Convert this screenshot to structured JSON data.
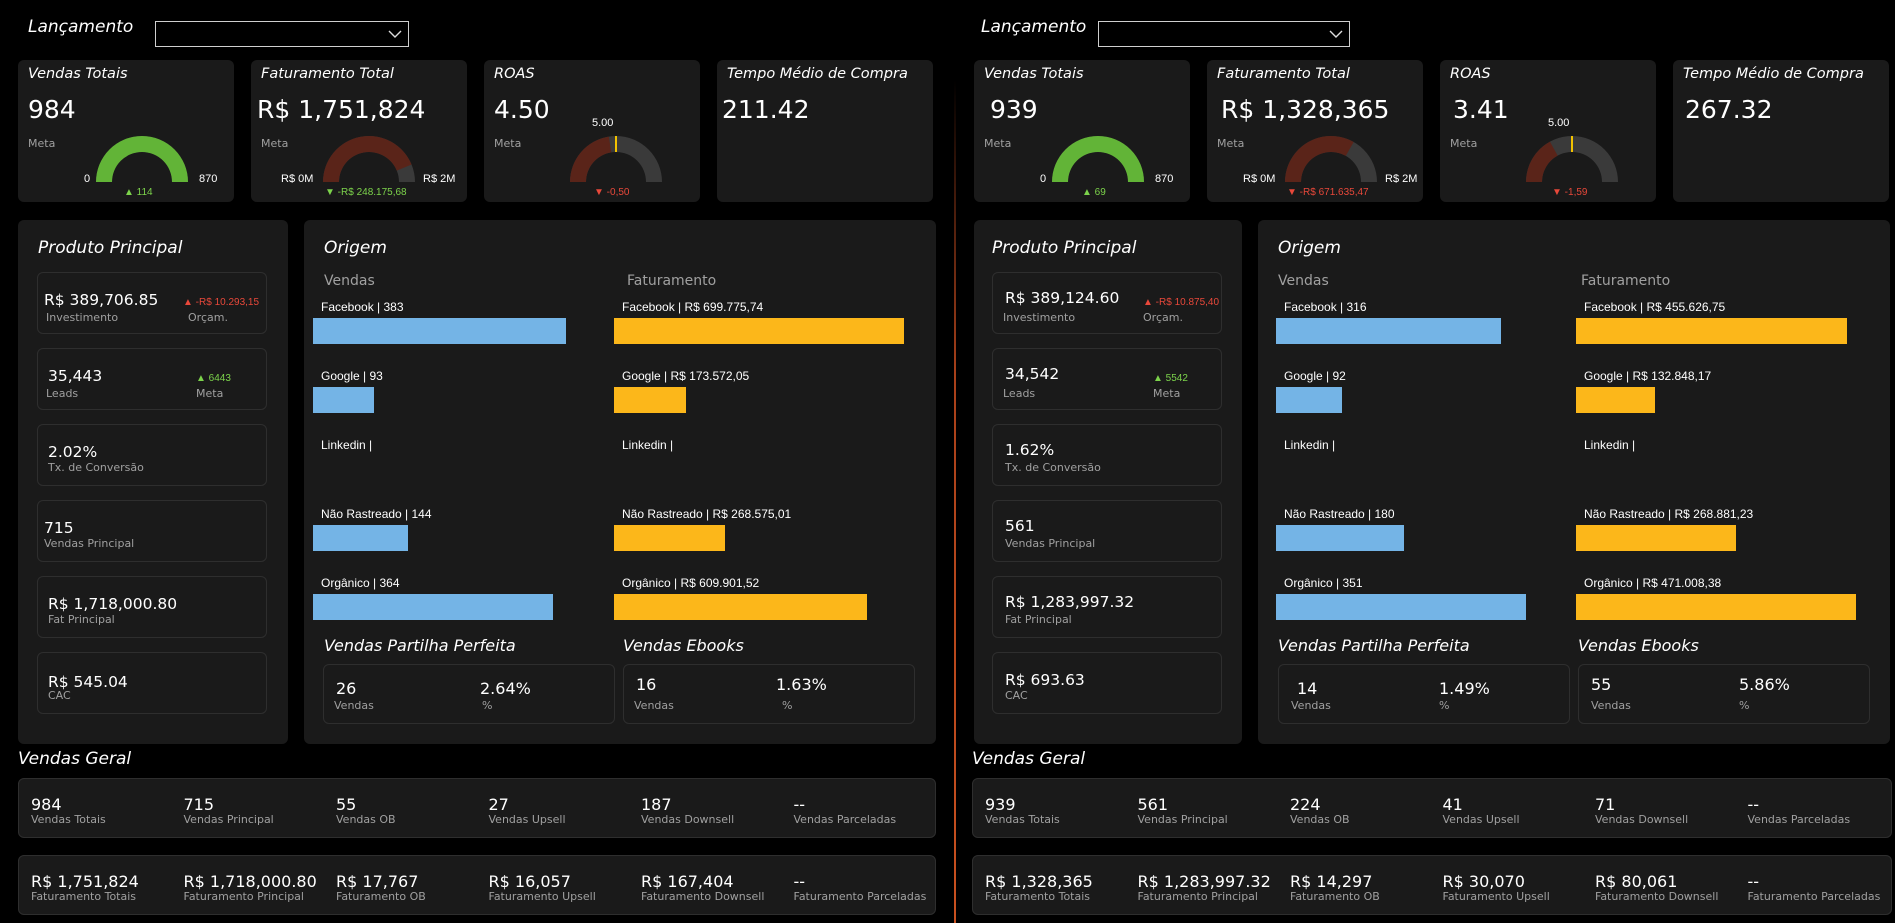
{
  "colors": {
    "green": "#62b437",
    "red": "#e8483a",
    "blue": "#74b4e6",
    "yellow": "#fcb71a",
    "gauge_red": "#5a2419",
    "gauge_grey": "#3a3a3a",
    "needle": "#f2c200"
  },
  "panels": [
    {
      "filter_label": "Lançamento",
      "kpis": {
        "vendas": {
          "title": "Vendas Totais",
          "value": "984",
          "meta_label": "Meta",
          "min": "0",
          "max": "870",
          "delta": "▲ 114",
          "fill": 1.0
        },
        "faturamento": {
          "title": "Faturamento Total",
          "value": "R$ 1,751,824",
          "meta_label": "Meta",
          "min": "R$ 0M",
          "max": "R$ 2M",
          "delta": "▼ -R$ 248.175,68",
          "fill": 0.876
        },
        "roas": {
          "title": "ROAS",
          "value": "4.50",
          "meta_label": "Meta",
          "target": "5.00",
          "delta": "▼ -0,50",
          "fill": 0.45
        },
        "tempo": {
          "title": "Tempo Médio de Compra",
          "value": "211.42"
        }
      },
      "produto": {
        "title": "Produto Principal",
        "investimento": {
          "value": "R$ 389,706.85",
          "label": "Investimento",
          "delta": "▲ -R$ 10.293,15",
          "delta_label": "Orçam."
        },
        "leads": {
          "value": "35,443",
          "label": "Leads",
          "delta": "▲ 6443",
          "delta_label": "Meta"
        },
        "conversao": {
          "value": "2.02%",
          "label": "Tx. de Conversão"
        },
        "vendas_principal": {
          "value": "715",
          "label": "Vendas Principal"
        },
        "fat_principal": {
          "value": "R$ 1,718,000.80",
          "label": "Fat Principal"
        },
        "cac": {
          "value": "R$ 545.04",
          "label": "CAC"
        }
      },
      "origem": {
        "title": "Origem",
        "vendas_header": "Vendas",
        "fat_header": "Faturamento",
        "vendas": [
          {
            "label": "Facebook | 383",
            "value": 383
          },
          {
            "label": "Google | 93",
            "value": 93
          },
          {
            "label": "Linkedin |",
            "value": 0
          },
          {
            "label": "Não Rastreado | 144",
            "value": 144
          },
          {
            "label": "Orgânico | 364",
            "value": 364
          }
        ],
        "faturamento": [
          {
            "label": "Facebook | R$ 699.775,74",
            "value": 699775.74
          },
          {
            "label": "Google | R$ 173.572,05",
            "value": 173572.05
          },
          {
            "label": "Linkedin |",
            "value": 0
          },
          {
            "label": "Não Rastreado | R$ 268.575,01",
            "value": 268575.01
          },
          {
            "label": "Orgânico | R$ 609.901,52",
            "value": 609901.52
          }
        ]
      },
      "partilha": {
        "title": "Vendas Partilha Perfeita",
        "count": "26",
        "count_label": "Vendas",
        "pct": "2.64%",
        "pct_label": "%"
      },
      "ebooks": {
        "title": "Vendas Ebooks",
        "count": "16",
        "count_label": "Vendas",
        "pct": "1.63%",
        "pct_label": "%"
      },
      "geral": {
        "title": "Vendas Geral",
        "vendas": [
          {
            "value": "984",
            "label": "Vendas Totais"
          },
          {
            "value": "715",
            "label": "Vendas Principal"
          },
          {
            "value": "55",
            "label": "Vendas OB"
          },
          {
            "value": "27",
            "label": "Vendas Upsell"
          },
          {
            "value": "187",
            "label": "Vendas Downsell"
          },
          {
            "value": "--",
            "label": "Vendas Parceladas"
          }
        ],
        "faturamento": [
          {
            "value": "R$ 1,751,824",
            "label": "Faturamento Totais"
          },
          {
            "value": "R$ 1,718,000.80",
            "label": "Faturamento Principal"
          },
          {
            "value": "R$ 17,767",
            "label": "Faturamento OB"
          },
          {
            "value": "R$ 16,057",
            "label": "Faturamento Upsell"
          },
          {
            "value": "R$ 167,404",
            "label": "Faturamento Downsell"
          },
          {
            "value": "--",
            "label": "Faturamento Parceladas"
          }
        ]
      }
    },
    {
      "filter_label": "Lançamento",
      "kpis": {
        "vendas": {
          "title": "Vendas Totais",
          "value": "939",
          "meta_label": "Meta",
          "min": "0",
          "max": "870",
          "delta": "▲ 69",
          "fill": 1.0
        },
        "faturamento": {
          "title": "Faturamento Total",
          "value": "R$ 1,328,365",
          "meta_label": "Meta",
          "min": "R$ 0M",
          "max": "R$ 2M",
          "delta": "▼ -R$ 671.635,47",
          "fill": 0.664
        },
        "roas": {
          "title": "ROAS",
          "value": "3.41",
          "meta_label": "Meta",
          "target": "5.00",
          "delta": "▼ -1,59",
          "fill": 0.341
        },
        "tempo": {
          "title": "Tempo Médio de Compra",
          "value": "267.32"
        }
      },
      "produto": {
        "title": "Produto Principal",
        "investimento": {
          "value": "R$ 389,124.60",
          "label": "Investimento",
          "delta": "▲ -R$ 10.875,40",
          "delta_label": "Orçam."
        },
        "leads": {
          "value": "34,542",
          "label": "Leads",
          "delta": "▲ 5542",
          "delta_label": "Meta"
        },
        "conversao": {
          "value": "1.62%",
          "label": "Tx. de Conversão"
        },
        "vendas_principal": {
          "value": "561",
          "label": "Vendas Principal"
        },
        "fat_principal": {
          "value": "R$ 1,283,997.32",
          "label": "Fat Principal"
        },
        "cac": {
          "value": "R$ 693.63",
          "label": "CAC"
        }
      },
      "origem": {
        "title": "Origem",
        "vendas_header": "Vendas",
        "fat_header": "Faturamento",
        "vendas": [
          {
            "label": "Facebook | 316",
            "value": 316
          },
          {
            "label": "Google | 92",
            "value": 92
          },
          {
            "label": "Linkedin |",
            "value": 0
          },
          {
            "label": "Não Rastreado | 180",
            "value": 180
          },
          {
            "label": "Orgânico | 351",
            "value": 351
          }
        ],
        "faturamento": [
          {
            "label": "Facebook | R$ 455.626,75",
            "value": 455626.75
          },
          {
            "label": "Google | R$ 132.848,17",
            "value": 132848.17
          },
          {
            "label": "Linkedin |",
            "value": 0
          },
          {
            "label": "Não Rastreado | R$ 268.881,23",
            "value": 268881.23
          },
          {
            "label": "Orgânico | R$ 471.008,38",
            "value": 471008.38
          }
        ]
      },
      "partilha": {
        "title": "Vendas Partilha Perfeita",
        "count": "14",
        "count_label": "Vendas",
        "pct": "1.49%",
        "pct_label": "%"
      },
      "ebooks": {
        "title": "Vendas Ebooks",
        "count": "55",
        "count_label": "Vendas",
        "pct": "5.86%",
        "pct_label": "%"
      },
      "geral": {
        "title": "Vendas Geral",
        "vendas": [
          {
            "value": "939",
            "label": "Vendas Totais"
          },
          {
            "value": "561",
            "label": "Vendas Principal"
          },
          {
            "value": "224",
            "label": "Vendas OB"
          },
          {
            "value": "41",
            "label": "Vendas Upsell"
          },
          {
            "value": "71",
            "label": "Vendas Downsell"
          },
          {
            "value": "--",
            "label": "Vendas Parceladas"
          }
        ],
        "faturamento": [
          {
            "value": "R$ 1,328,365",
            "label": "Faturamento Totais"
          },
          {
            "value": "R$ 1,283,997.32",
            "label": "Faturamento Principal"
          },
          {
            "value": "R$ 14,297",
            "label": "Faturamento OB"
          },
          {
            "value": "R$ 30,070",
            "label": "Faturamento Upsell"
          },
          {
            "value": "R$ 80,061",
            "label": "Faturamento Downsell"
          },
          {
            "value": "--",
            "label": "Faturamento Parceladas"
          }
        ]
      }
    }
  ]
}
